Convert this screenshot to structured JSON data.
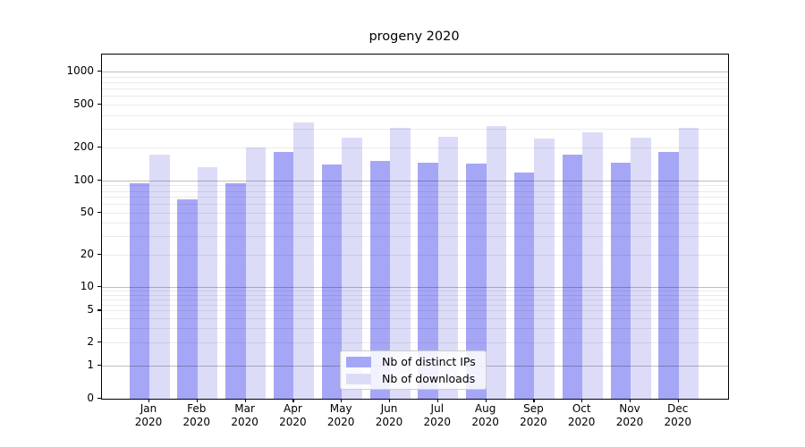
{
  "title": "progeny 2020",
  "chart_data": {
    "type": "bar",
    "title": "progeny 2020",
    "categories": [
      "Jan",
      "Feb",
      "Mar",
      "Apr",
      "May",
      "Jun",
      "Jul",
      "Aug",
      "Sep",
      "Oct",
      "Nov",
      "Dec"
    ],
    "year": "2020",
    "series": [
      {
        "name": "Nb of distinct IPs",
        "color": "#a6a6f6",
        "values": [
          95,
          67,
          94,
          183,
          140,
          151,
          146,
          143,
          118,
          174,
          145,
          183
        ]
      },
      {
        "name": "Nb of downloads",
        "color": "#dcdcf9",
        "values": [
          172,
          133,
          200,
          340,
          246,
          304,
          250,
          315,
          242,
          276,
          246,
          305
        ]
      }
    ],
    "y_scale": "symlog",
    "y_ticks": [
      0,
      1,
      2,
      5,
      10,
      20,
      50,
      100,
      200,
      500,
      1000
    ],
    "ylim": [
      0,
      1400
    ],
    "grid": "log major and minor horizontal gridlines, drawn above bars",
    "legend_position": "lower center"
  }
}
